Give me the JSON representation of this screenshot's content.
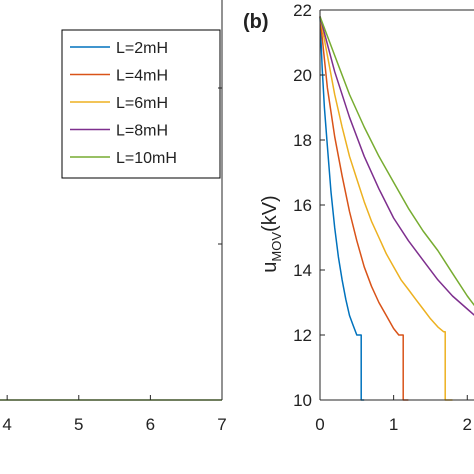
{
  "chart_data": [
    {
      "panel_label": "",
      "type": "line",
      "xlabel": "",
      "ylabel": "",
      "xlim": [
        3.9,
        7
      ],
      "x_ticks": [
        4,
        5,
        6,
        7
      ],
      "x_tick_labels": [
        "4",
        "5",
        "6",
        "7"
      ],
      "grid": false,
      "legend": {
        "position": "top-right",
        "entries": [
          {
            "label": "L=2mH",
            "color": "#0072BD"
          },
          {
            "label": "L=4mH",
            "color": "#D95319"
          },
          {
            "label": "L=6mH",
            "color": "#EDB120"
          },
          {
            "label": "L=8mH",
            "color": "#7E2F8E"
          },
          {
            "label": "L=10mH",
            "color": "#77AC30"
          }
        ]
      },
      "series": [
        {
          "name": "L=10mH",
          "color": "#77AC30",
          "x": [
            3.9,
            7
          ],
          "y": [
            0,
            0
          ]
        }
      ]
    },
    {
      "panel_label": "(b)",
      "type": "line",
      "xlabel": "",
      "ylabel": "u",
      "ylabel_subscript": "MOV",
      "ylabel_unit": "(kV)",
      "xlim": [
        0,
        2.2
      ],
      "ylim": [
        10,
        22
      ],
      "x_ticks": [
        0,
        1,
        2
      ],
      "x_tick_labels": [
        "0",
        "1",
        "2"
      ],
      "y_ticks": [
        10,
        12,
        14,
        16,
        18,
        20,
        22
      ],
      "y_tick_labels": [
        "10",
        "12",
        "14",
        "16",
        "18",
        "20",
        "22"
      ],
      "grid": false,
      "series": [
        {
          "name": "L=2mH",
          "color": "#0072BD",
          "x": [
            0,
            0.03,
            0.06,
            0.1,
            0.15,
            0.2,
            0.25,
            0.3,
            0.35,
            0.4,
            0.45,
            0.5,
            0.52,
            0.56,
            0.56,
            0.6
          ],
          "y": [
            21.8,
            20.2,
            19.0,
            17.8,
            16.4,
            15.3,
            14.4,
            13.7,
            13.1,
            12.6,
            12.3,
            12.0,
            12.0,
            12.0,
            10.0,
            10.0
          ]
        },
        {
          "name": "L=4mH",
          "color": "#D95319",
          "x": [
            0,
            0.1,
            0.2,
            0.3,
            0.4,
            0.5,
            0.6,
            0.7,
            0.8,
            0.9,
            1.0,
            1.07,
            1.13,
            1.13,
            1.2
          ],
          "y": [
            21.8,
            19.6,
            18.1,
            16.9,
            15.8,
            14.9,
            14.1,
            13.5,
            13.0,
            12.6,
            12.2,
            12.0,
            12.0,
            10.0,
            10.0
          ]
        },
        {
          "name": "L=6mH",
          "color": "#EDB120",
          "x": [
            0,
            0.1,
            0.2,
            0.3,
            0.4,
            0.5,
            0.6,
            0.7,
            0.8,
            0.9,
            1.0,
            1.1,
            1.2,
            1.3,
            1.4,
            1.5,
            1.6,
            1.68,
            1.7,
            1.7,
            1.8
          ],
          "y": [
            21.8,
            20.6,
            19.4,
            18.4,
            17.5,
            16.8,
            16.1,
            15.5,
            15.0,
            14.5,
            14.1,
            13.7,
            13.4,
            13.1,
            12.8,
            12.5,
            12.25,
            12.1,
            12.1,
            10.0,
            10.0
          ]
        },
        {
          "name": "L=8mH",
          "color": "#7E2F8E",
          "x": [
            0,
            0.2,
            0.4,
            0.6,
            0.8,
            1.0,
            1.2,
            1.4,
            1.6,
            1.8,
            2.0,
            2.2
          ],
          "y": [
            21.8,
            20.1,
            18.7,
            17.5,
            16.5,
            15.6,
            14.9,
            14.3,
            13.7,
            13.2,
            12.8,
            12.4
          ]
        },
        {
          "name": "L=10mH",
          "color": "#77AC30",
          "x": [
            0,
            0.2,
            0.4,
            0.6,
            0.8,
            1.0,
            1.2,
            1.4,
            1.6,
            1.8,
            2.0,
            2.2
          ],
          "y": [
            21.8,
            20.6,
            19.4,
            18.4,
            17.5,
            16.7,
            15.9,
            15.2,
            14.6,
            13.9,
            13.2,
            12.6
          ]
        }
      ]
    }
  ]
}
